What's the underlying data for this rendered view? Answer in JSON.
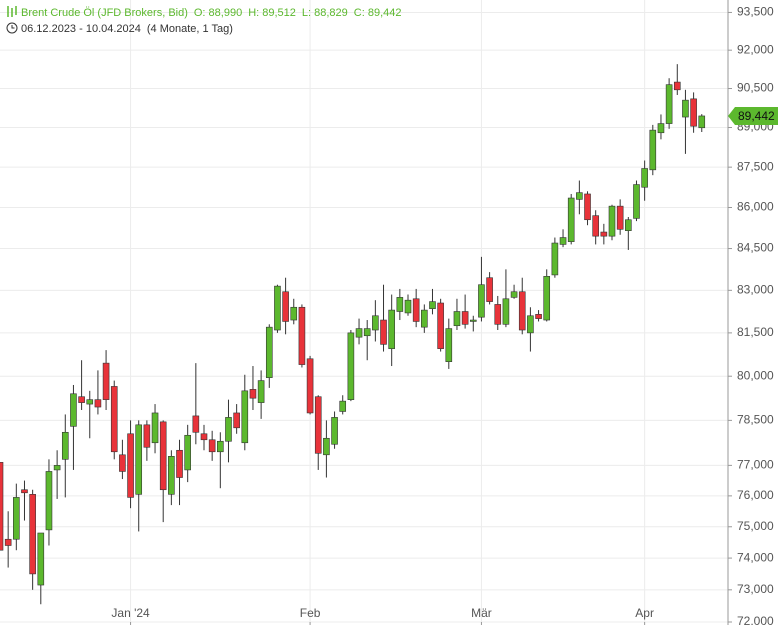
{
  "chart_data": {
    "type": "candlestick",
    "title": "Brent Crude Öl (JFD Brokers, Bid)",
    "ohlc_legend": [
      "O: 88,990",
      "H: 89,512",
      "L: 88,829",
      "C: 89,442"
    ],
    "subtitle": "06.12.2023 - 10.04.2024",
    "subtitle_note": "(4 Monate, 1 Tag)",
    "last_label": "89,442",
    "up_color": "#5cb82e",
    "down_color": "#e8333a",
    "log_scale": true,
    "grid": true,
    "categories": [
      null,
      null,
      null,
      null,
      null,
      null,
      null,
      null,
      null,
      null,
      null,
      null,
      null,
      null,
      null,
      null,
      "Jan '24",
      null,
      null,
      null,
      null,
      null,
      null,
      null,
      null,
      null,
      null,
      null,
      null,
      null,
      null,
      null,
      null,
      null,
      null,
      null,
      null,
      null,
      "Feb",
      null,
      null,
      null,
      null,
      null,
      null,
      null,
      null,
      null,
      null,
      null,
      null,
      null,
      null,
      null,
      null,
      null,
      null,
      null,
      null,
      "Mär",
      null,
      null,
      null,
      null,
      null,
      null,
      null,
      null,
      null,
      null,
      null,
      null,
      null,
      null,
      null,
      null,
      null,
      null,
      null,
      "Apr",
      null,
      null,
      null,
      null,
      null,
      null,
      null
    ],
    "open": [
      77.1,
      74.6,
      74.6,
      76.2,
      76.05,
      73.15,
      74.9,
      76.85,
      77.2,
      78.3,
      79.3,
      79.05,
      79.2,
      80.45,
      79.65,
      77.35,
      78.05,
      76.05,
      78.35,
      77.75,
      78.45,
      76.05,
      77.5,
      76.85,
      78.65,
      78.05,
      77.85,
      77.45,
      77.8,
      78.75,
      77.75,
      79.55,
      79.1,
      79.95,
      81.6,
      82.95,
      81.95,
      82.4,
      80.6,
      79.3,
      77.35,
      77.7,
      78.8,
      79.2,
      81.35,
      81.4,
      81.6,
      81.95,
      80.95,
      82.25,
      82.2,
      82.7,
      81.7,
      82.35,
      82.55,
      80.5,
      81.75,
      82.25,
      81.9,
      82.05,
      83.45,
      82.5,
      81.8,
      82.75,
      82.95,
      81.5,
      82.15,
      81.95,
      83.55,
      84.65,
      84.75,
      86.3,
      86.5,
      85.7,
      85.1,
      84.95,
      86.05,
      85.15,
      85.6,
      86.75,
      87.4,
      88.8,
      89.15,
      90.75,
      89.4,
      90.1,
      88.99
    ],
    "high": [
      77.1,
      75.5,
      76.4,
      76.5,
      76.2,
      74.8,
      77.2,
      77.5,
      78.7,
      79.7,
      80.55,
      79.5,
      80.2,
      80.9,
      79.85,
      77.85,
      78.5,
      78.5,
      78.5,
      79.05,
      78.5,
      77.5,
      77.85,
      78.35,
      80.45,
      78.35,
      78.15,
      78.1,
      79.2,
      79.05,
      80.05,
      80.35,
      80.2,
      81.8,
      83.2,
      83.45,
      82.7,
      82.5,
      80.7,
      79.35,
      78.5,
      78.8,
      79.35,
      81.6,
      82.0,
      81.95,
      82.65,
      83.2,
      82.85,
      83.05,
      82.85,
      83.05,
      82.5,
      83.05,
      82.7,
      82.0,
      82.7,
      82.85,
      82.1,
      84.2,
      83.65,
      82.8,
      83.75,
      83.2,
      83.45,
      82.4,
      82.3,
      83.75,
      84.9,
      85.2,
      86.5,
      87.0,
      86.6,
      85.9,
      85.4,
      86.1,
      86.3,
      85.65,
      87.0,
      87.75,
      89.1,
      89.5,
      90.9,
      91.45,
      90.45,
      90.35,
      89.512
    ],
    "low": [
      74.25,
      73.7,
      74.25,
      75.2,
      73.0,
      72.55,
      74.4,
      75.9,
      75.95,
      76.85,
      78.85,
      77.9,
      78.7,
      78.85,
      77.2,
      76.55,
      75.6,
      74.85,
      77.15,
      77.4,
      75.15,
      75.7,
      75.7,
      76.45,
      77.7,
      77.5,
      77.15,
      76.25,
      77.1,
      78.05,
      77.5,
      78.85,
      78.55,
      79.6,
      81.5,
      81.45,
      81.8,
      80.3,
      78.7,
      76.85,
      76.6,
      77.55,
      78.7,
      79.15,
      81.1,
      80.55,
      81.2,
      80.85,
      80.35,
      81.95,
      82.1,
      81.7,
      81.5,
      82.15,
      80.85,
      80.25,
      81.6,
      81.65,
      81.55,
      81.9,
      82.5,
      81.6,
      81.7,
      82.7,
      81.45,
      80.85,
      81.9,
      81.9,
      83.45,
      84.55,
      84.65,
      85.75,
      85.35,
      84.65,
      84.65,
      84.8,
      85.0,
      84.45,
      85.5,
      86.25,
      87.2,
      88.55,
      88.95,
      90.25,
      88.0,
      88.8,
      88.829
    ],
    "close": [
      74.25,
      74.4,
      75.95,
      76.1,
      73.5,
      74.8,
      76.8,
      77.0,
      78.1,
      79.4,
      79.1,
      79.2,
      78.95,
      79.2,
      77.45,
      76.8,
      75.95,
      78.35,
      77.6,
      78.75,
      76.2,
      77.3,
      76.6,
      78.0,
      78.1,
      77.85,
      77.45,
      77.8,
      78.6,
      78.25,
      79.5,
      79.25,
      79.85,
      81.7,
      83.15,
      81.9,
      82.4,
      80.4,
      78.75,
      77.4,
      77.9,
      78.6,
      79.15,
      81.5,
      81.65,
      81.65,
      82.1,
      81.1,
      82.3,
      82.75,
      82.65,
      81.9,
      82.3,
      82.6,
      80.95,
      81.65,
      82.25,
      81.8,
      81.95,
      83.2,
      82.6,
      81.8,
      82.7,
      82.95,
      81.6,
      82.1,
      82.0,
      83.5,
      84.7,
      84.9,
      86.35,
      86.55,
      85.55,
      84.95,
      84.95,
      86.05,
      85.2,
      85.55,
      86.85,
      87.45,
      88.9,
      89.15,
      90.65,
      90.45,
      90.05,
      89.05,
      89.442
    ],
    "ylim": [
      72,
      94
    ],
    "yticks": [
      {
        "value": 72,
        "label": "72,000"
      },
      {
        "value": 73,
        "label": "73,000"
      },
      {
        "value": 74,
        "label": "74,000"
      },
      {
        "value": 75,
        "label": "75,000"
      },
      {
        "value": 76,
        "label": "76,000"
      },
      {
        "value": 77,
        "label": "77,000"
      },
      {
        "value": 78.5,
        "label": "78,500"
      },
      {
        "value": 80,
        "label": "80,000"
      },
      {
        "value": 81.5,
        "label": "81,500"
      },
      {
        "value": 83,
        "label": "83,000"
      },
      {
        "value": 84.5,
        "label": "84,500"
      },
      {
        "value": 86,
        "label": "86,000"
      },
      {
        "value": 87.5,
        "label": "87,500"
      },
      {
        "value": 89,
        "label": "89,000"
      },
      {
        "value": 90.5,
        "label": "90,500"
      },
      {
        "value": 92,
        "label": "92,000"
      },
      {
        "value": 93.5,
        "label": "93,500"
      }
    ]
  }
}
